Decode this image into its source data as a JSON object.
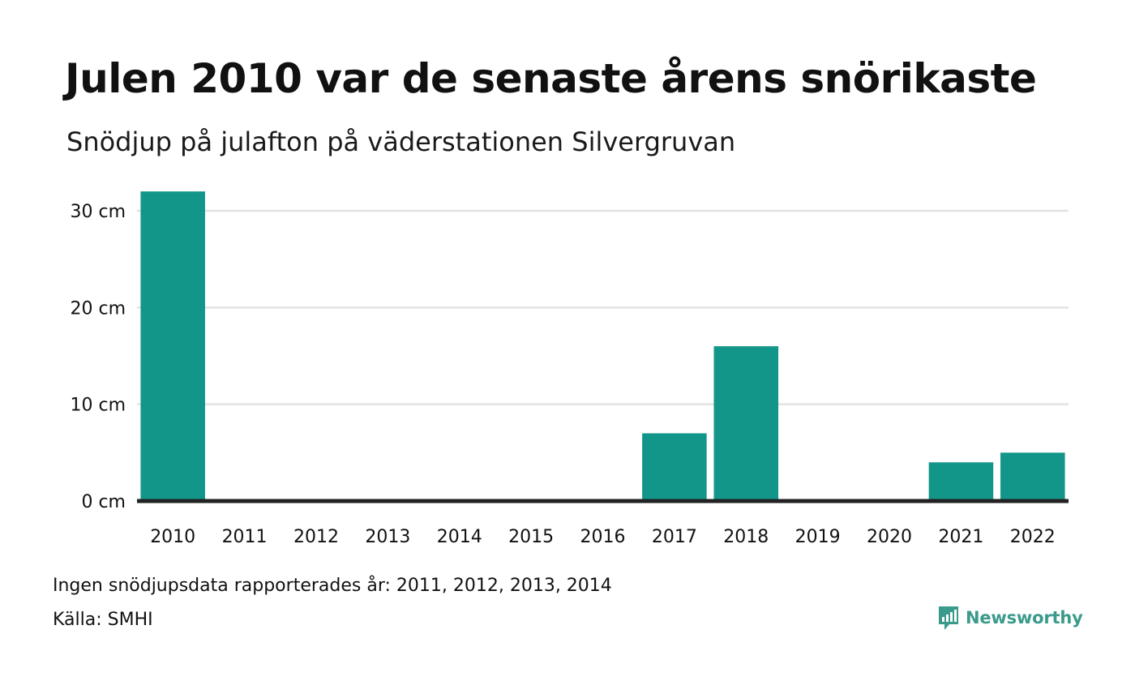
{
  "title": "Julen 2010 var de senaste årens snörikaste",
  "subtitle": "Snödjup på julafton på väderstationen Silvergruvan",
  "note": "Ingen snödjupsdata rapporterades år: 2011, 2012, 2013, 2014",
  "source": "Källa: SMHI",
  "brand": {
    "name": "Newsworthy",
    "color": "#3a9a8b"
  },
  "colors": {
    "bar": "#13968a",
    "baseline": "#222222",
    "grid": "#e2e2e2"
  },
  "chart_data": {
    "type": "bar",
    "categories": [
      "2010",
      "2011",
      "2012",
      "2013",
      "2014",
      "2015",
      "2016",
      "2017",
      "2018",
      "2019",
      "2020",
      "2021",
      "2022"
    ],
    "values": [
      32,
      0,
      0,
      0,
      0,
      0,
      0,
      7,
      16,
      0,
      0,
      4,
      5
    ],
    "title": "Julen 2010 var de senaste årens snörikaste",
    "subtitle": "Snödjup på julafton på väderstationen Silvergruvan",
    "ylim": [
      0,
      32
    ],
    "yticks": [
      0,
      10,
      20,
      30
    ],
    "ytick_labels": [
      "0 cm",
      "10 cm",
      "20 cm",
      "30 cm"
    ],
    "grid": true,
    "legend": "none"
  }
}
